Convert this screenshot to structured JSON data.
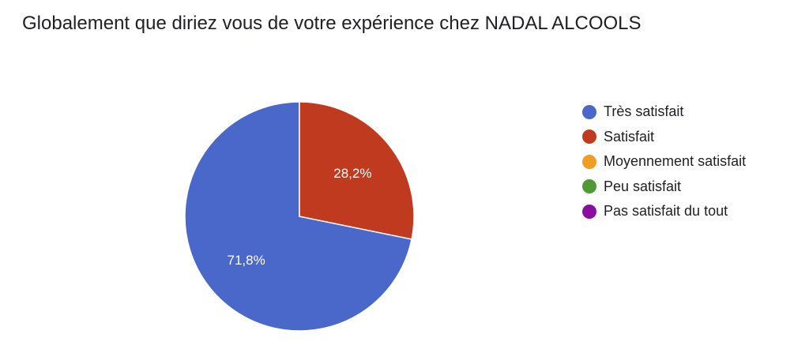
{
  "chart_data": {
    "type": "pie",
    "title": "Globalement que diriez vous de votre expérience chez NADAL ALCOOLS",
    "categories": [
      "Très satisfait",
      "Satisfait",
      "Moyennement satisfait",
      "Peu satisfait",
      "Pas satisfait du tout"
    ],
    "values": [
      71.8,
      28.2,
      0,
      0,
      0
    ],
    "data_labels": [
      "71,8%",
      "28,2%",
      "",
      "",
      ""
    ],
    "colors": [
      "#4a67ca",
      "#bf3a1f",
      "#f09d25",
      "#4f9a36",
      "#8b0f9f"
    ],
    "legend_position": "right"
  }
}
